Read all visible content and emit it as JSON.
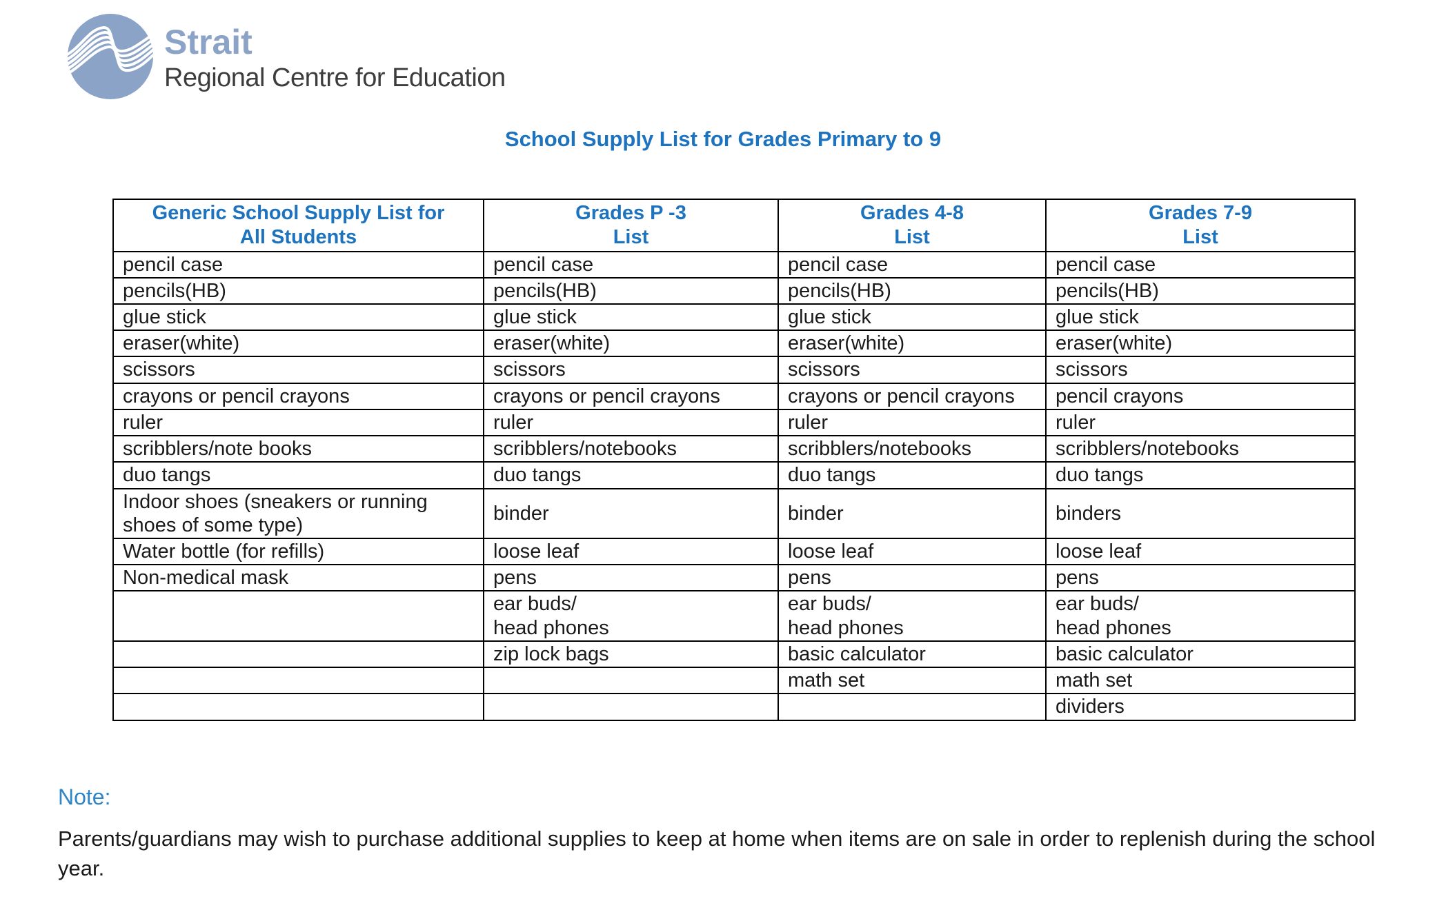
{
  "logo": {
    "brand": "Strait",
    "subtitle": "Regional Centre for Education"
  },
  "title": "School Supply List for Grades Primary to 9",
  "table": {
    "headers": [
      {
        "line1": "Generic School Supply List for",
        "line2": "All Students"
      },
      {
        "line1": "Grades P -3",
        "line2": "List"
      },
      {
        "line1": "Grades 4-8",
        "line2": "List"
      },
      {
        "line1": "Grades 7-9",
        "line2": "List"
      }
    ],
    "rows": [
      [
        "pencil case",
        "pencil case",
        "pencil case",
        "pencil case"
      ],
      [
        "pencils(HB)",
        "pencils(HB)",
        "pencils(HB)",
        "pencils(HB)"
      ],
      [
        "glue stick",
        "glue stick",
        "glue stick",
        "glue stick"
      ],
      [
        "eraser(white)",
        "eraser(white)",
        "eraser(white)",
        "eraser(white)"
      ],
      [
        "scissors",
        "scissors",
        "scissors",
        "scissors"
      ],
      [
        "crayons or pencil crayons",
        "crayons or pencil crayons",
        "crayons or pencil crayons",
        "pencil crayons"
      ],
      [
        "ruler",
        "ruler",
        "ruler",
        "ruler"
      ],
      [
        "scribblers/note books",
        "scribblers/notebooks",
        "scribblers/notebooks",
        "scribblers/notebooks"
      ],
      [
        "duo tangs",
        "duo tangs",
        "duo tangs",
        "duo tangs"
      ],
      [
        "Indoor shoes (sneakers or running shoes of some type)",
        "binder",
        "binder",
        "binders"
      ],
      [
        "Water bottle (for refills)",
        "loose leaf",
        "loose leaf",
        "loose leaf"
      ],
      [
        "Non-medical mask",
        "pens",
        "pens",
        "pens"
      ],
      [
        "",
        "ear buds/\nhead phones",
        "ear buds/\nhead phones",
        "ear buds/\nhead phones"
      ],
      [
        "",
        "zip lock bags",
        "basic calculator",
        "basic calculator"
      ],
      [
        "",
        "",
        "math set",
        "math set"
      ],
      [
        "",
        "",
        "",
        "dividers"
      ]
    ]
  },
  "note": {
    "label": "Note:",
    "text": "Parents/guardians may wish to purchase additional supplies to keep at home when items are on sale in order to replenish during the school year."
  },
  "colors": {
    "heading_blue": "#1E73BE",
    "note_blue": "#2E86C6",
    "logo_blue": "#8BA3C7",
    "logo_dark": "#3D3D3D",
    "text_black": "#1A1A1A",
    "border_black": "#000000"
  }
}
